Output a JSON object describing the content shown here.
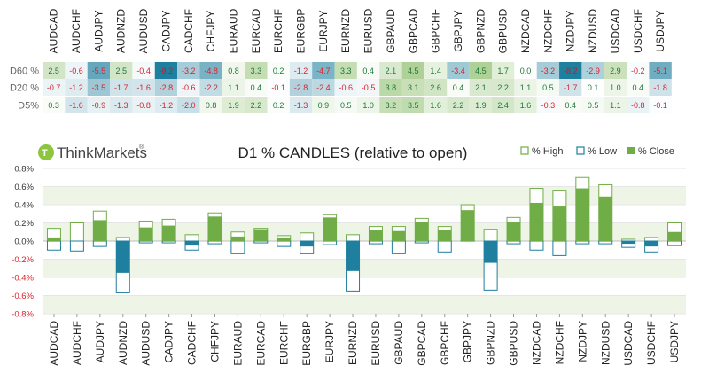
{
  "logo": {
    "text": "ThinkMarkets",
    "registered": "®"
  },
  "heatmap": {
    "row_labels": [
      "D60 %",
      "D20 %",
      "D5%"
    ],
    "cells": [
      [
        "2.5",
        "-0.6",
        "-5.5",
        "2.5",
        "-0.4",
        "-8.2",
        "-3.2",
        "-4.8",
        "0.8",
        "3.3",
        "0.2",
        "-1.2",
        "-4.7",
        "3.3",
        "0.4",
        "2.1",
        "4.5",
        "1.4",
        "-3.4",
        "4.5",
        "1.7",
        "0.0",
        "-3.2",
        "-8.2",
        "-2.9",
        "2.9",
        "-0.2",
        "-5.1"
      ],
      [
        "-0.7",
        "-1.2",
        "-3.5",
        "-1.7",
        "-1.6",
        "-2.8",
        "-0.6",
        "-2.2",
        "1.1",
        "0.4",
        "-0.1",
        "-2.8",
        "-2.4",
        "-0.6",
        "-0.5",
        "3.8",
        "3.1",
        "2.6",
        "0.4",
        "2.1",
        "2.2",
        "1.1",
        "0.5",
        "-1.7",
        "0.1",
        "1.0",
        "0.4",
        "-1.8"
      ],
      [
        "0.3",
        "-1.6",
        "-0.9",
        "-1.3",
        "-0.8",
        "-1.2",
        "-2.0",
        "0.8",
        "1.9",
        "2.2",
        "0.2",
        "-1.3",
        "0.9",
        "0.5",
        "1.0",
        "3.2",
        "3.5",
        "1.6",
        "2.2",
        "1.9",
        "2.4",
        "1.6",
        "-0.3",
        "0.4",
        "0.5",
        "1.1",
        "-0.8",
        "-0.1"
      ]
    ]
  },
  "chart_data": {
    "type": "bar",
    "title": "D1 % CANDLES (relative to open)",
    "categories": [
      "AUDCAD",
      "AUDCHF",
      "AUDJPY",
      "AUDNZD",
      "AUDUSD",
      "CADJPY",
      "CADCHF",
      "CHFJPY",
      "EURAUD",
      "EURCAD",
      "EURCHF",
      "EURGBP",
      "EURJPY",
      "EURNZD",
      "EURUSD",
      "GBPAUD",
      "GBPCAD",
      "GBPCHF",
      "GBPJPY",
      "GBPNZD",
      "GBPUSD",
      "NZDCAD",
      "NZDCHF",
      "NZDJPY",
      "NZDUSD",
      "USDCAD",
      "USDCHF",
      "USDJPY"
    ],
    "series": [
      {
        "name": "% High",
        "values": [
          0.14,
          0.2,
          0.33,
          0.04,
          0.22,
          0.24,
          0.07,
          0.31,
          0.1,
          0.14,
          0.06,
          0.09,
          0.29,
          0.07,
          0.16,
          0.16,
          0.25,
          0.16,
          0.4,
          0.13,
          0.26,
          0.58,
          0.56,
          0.7,
          0.62,
          0.02,
          0.04,
          0.2
        ]
      },
      {
        "name": "% Low",
        "values": [
          -0.1,
          -0.11,
          -0.06,
          -0.57,
          -0.02,
          -0.02,
          -0.1,
          -0.03,
          -0.14,
          -0.02,
          -0.06,
          -0.14,
          -0.04,
          -0.55,
          -0.03,
          -0.14,
          -0.02,
          -0.12,
          0.0,
          -0.54,
          -0.03,
          -0.1,
          -0.16,
          -0.03,
          -0.03,
          -0.07,
          -0.12,
          -0.05
        ]
      },
      {
        "name": "% Close",
        "values": [
          0.04,
          0.0,
          0.23,
          -0.35,
          0.15,
          0.17,
          -0.05,
          0.27,
          0.05,
          0.13,
          0.04,
          -0.06,
          0.26,
          -0.33,
          0.12,
          0.11,
          0.21,
          0.12,
          0.34,
          -0.24,
          0.21,
          0.42,
          0.38,
          0.58,
          0.49,
          -0.03,
          -0.06,
          0.1
        ]
      }
    ],
    "yticks": [
      "0.8%",
      "0.6%",
      "0.4%",
      "0.2%",
      "0.0%",
      "-0.2%",
      "-0.4%",
      "-0.6%",
      "-0.8%"
    ],
    "ylim": [
      -0.8,
      0.8
    ],
    "grid": true,
    "legend": "top-right"
  },
  "colors": {
    "up": "#70ad47",
    "down": "#1f7f9e",
    "high_border": "#70ad47",
    "low_border": "#1f7f9e",
    "band": "#eef5e6",
    "positive_tick": "#333333",
    "negative_tick": "#d9232d",
    "cell_pos": "#1a7a3a",
    "cell_neg": "#d9232d"
  }
}
